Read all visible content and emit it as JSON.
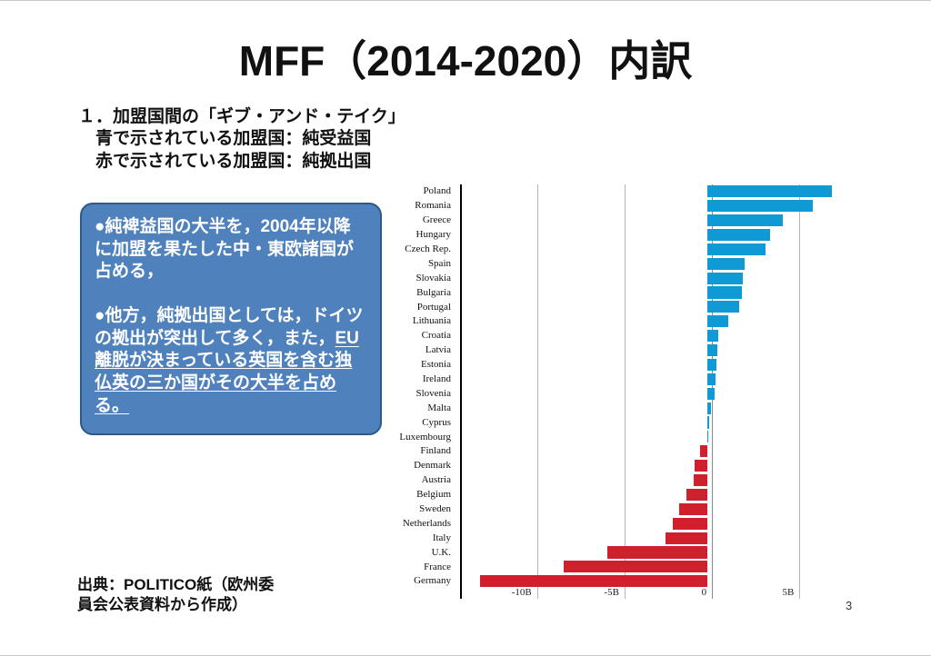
{
  "slide": {
    "title": "MFF（2014-2020）内訳",
    "page_number": "3"
  },
  "heading": {
    "line1": "１．加盟国間の「ギブ・アンド・テイク」",
    "line2": "青で示されている加盟国：純受益国",
    "line3": "赤で示されている加盟国：純拠出国"
  },
  "callout": {
    "fill_color": "#4f81bd",
    "border_color": "#2d5986",
    "paragraph1": "●純裨益国の大半を，2004年以降に加盟を果たした中・東欧諸国が占める，",
    "paragraph2_lead": "●他方，純拠出国としては，ドイツの拠出が突出して多く，また，",
    "paragraph2_underlined": "EU離脱が決まっている英国を含む独仏英の三か国がその大半を占める。"
  },
  "source": {
    "line1": "出典：POLITICO紙（欧州委",
    "line2": "員会公表資料から作成）"
  },
  "chart_data": {
    "type": "bar",
    "orientation": "horizontal",
    "unit": "billion EUR",
    "title": "",
    "xlabel": "",
    "ylabel": "",
    "legend": "none",
    "grid": true,
    "xlim": [
      -14.3,
      9.4
    ],
    "positive_color": "#0f9ad6",
    "negative_color": "#d0202e",
    "gridline_color": "#b5b5b5",
    "zeroline_color": "#8a8a8a",
    "ticks": [
      {
        "value": -10,
        "label": "-10B"
      },
      {
        "value": -5,
        "label": "-5B"
      },
      {
        "value": 0,
        "label": "0"
      },
      {
        "value": 5,
        "label": "5B"
      }
    ],
    "categories": [
      "Poland",
      "Romania",
      "Greece",
      "Hungary",
      "Czech Rep.",
      "Spain",
      "Slovakia",
      "Bulgaria",
      "Portugal",
      "Lithuania",
      "Croatia",
      "Latvia",
      "Estonia",
      "Ireland",
      "Slovenia",
      "Malta",
      "Cyprus",
      "Luxembourg",
      "Finland",
      "Denmark",
      "Austria",
      "Belgium",
      "Sweden",
      "Netherlands",
      "Italy",
      "U.K.",
      "France",
      "Germany"
    ],
    "values": [
      7.1,
      6.0,
      4.3,
      3.6,
      3.3,
      2.1,
      2.0,
      1.95,
      1.8,
      1.2,
      0.6,
      0.55,
      0.5,
      0.45,
      0.4,
      0.2,
      0.1,
      0.05,
      -0.4,
      -0.75,
      -0.8,
      -1.2,
      -1.6,
      -2.0,
      -2.4,
      -5.7,
      -8.2,
      -13.0
    ]
  }
}
